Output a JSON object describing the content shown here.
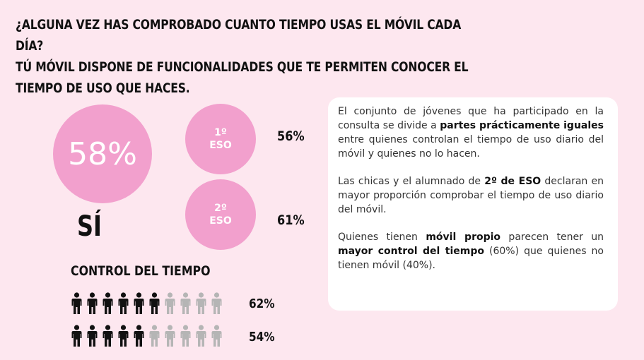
{
  "title": {
    "line1": "¿Alguna vez has comprobado cuanto tiempo usas el móvil cada día?",
    "line2": "Tú móvil dispone de funcionalidades que te permiten conocer el",
    "line3": "tiempo de uso que haces."
  },
  "main_stat": {
    "value": "58%",
    "label": "SÍ"
  },
  "courses": [
    {
      "line1": "1º",
      "line2": "ESO",
      "value": "56%"
    },
    {
      "line1": "2º",
      "line2": "ESO",
      "value": "61%"
    }
  ],
  "control": {
    "heading": "CONTROL DEL TIEMPO",
    "rows": [
      {
        "value": "62%",
        "filled": 6,
        "total": 10
      },
      {
        "value": "54%",
        "filled": 5,
        "total": 10
      }
    ]
  },
  "colors": {
    "background": "#fde7ef",
    "accent": "#f2a0cd",
    "filled_person": "#111111",
    "empty_person": "#b5b5b5"
  },
  "card": {
    "p1_a": "El conjunto de jóvenes que ha participado en la consulta se divide a ",
    "p1_b": "partes prácticamente iguales",
    "p1_c": " entre quienes controlan el tiempo de uso diario del móvil y quienes no lo hacen.",
    "p2_a": "Las chicas y el alumnado de ",
    "p2_b": "2º de ESO",
    "p2_c": " declaran en mayor proporción comprobar el tiempo de uso diario del móvil.",
    "p3_a": "Quienes tienen ",
    "p3_b": "móvil propio",
    "p3_c": " parecen tener un ",
    "p3_d": "mayor control del tiempo",
    "p3_e": " (60%) que quienes no tienen móvil (40%)."
  }
}
